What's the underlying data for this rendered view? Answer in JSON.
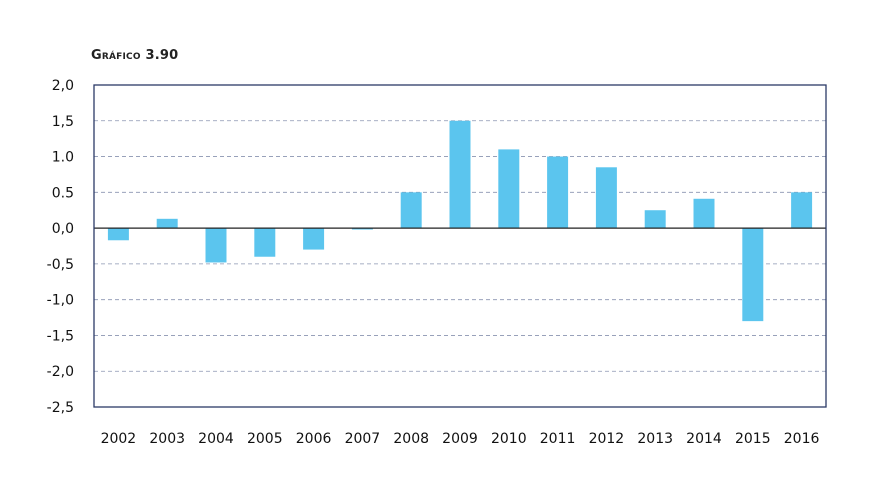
{
  "chart_data": {
    "type": "bar",
    "title": "Gráfico 3.90",
    "categories": [
      "2002",
      "2003",
      "2004",
      "2005",
      "2006",
      "2007",
      "2008",
      "2009",
      "2010",
      "2011",
      "2012",
      "2013",
      "2014",
      "2015",
      "2016"
    ],
    "values": [
      -0.17,
      0.13,
      -0.48,
      -0.4,
      -0.3,
      -0.02,
      0.5,
      1.5,
      1.1,
      1.0,
      0.85,
      0.25,
      0.41,
      -1.3,
      0.5
    ],
    "y_ticks": [
      "2,0",
      "1,5",
      "1.0",
      "0.5",
      "0,0",
      "-0,5",
      "-1,0",
      "-1,5",
      "-2,0",
      "-2,5"
    ],
    "ylim": [
      -2.5,
      2.0
    ],
    "xlabel": "",
    "ylabel": "",
    "grid": true,
    "colors": {
      "bar": "#5bc5ee",
      "frame": "#2b3a67",
      "grid": "#8a94b0",
      "zero_line": "#222222"
    }
  }
}
